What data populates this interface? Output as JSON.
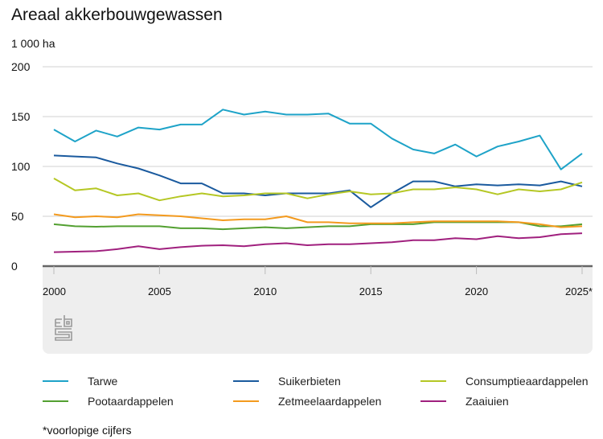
{
  "header": {
    "title": "Areaal akkerbouwgewassen",
    "unit": "1 000 ha"
  },
  "footnote": "*voorlopige cijfers",
  "logo": "cbs-logo-icon",
  "chart_data": {
    "type": "line",
    "title": "Areaal akkerbouwgewassen",
    "xlabel": "",
    "ylabel": "1 000 ha",
    "ylim": [
      0,
      200
    ],
    "yticks": [
      0,
      50,
      100,
      150,
      200
    ],
    "xlim": [
      2000,
      2025
    ],
    "xticks": [
      {
        "value": 2000,
        "label": "2000"
      },
      {
        "value": 2005,
        "label": "2005"
      },
      {
        "value": 2010,
        "label": "2010"
      },
      {
        "value": 2015,
        "label": "2015"
      },
      {
        "value": 2020,
        "label": "2020"
      },
      {
        "value": 2025,
        "label": "2025*"
      }
    ],
    "grid": true,
    "legend_position": "bottom",
    "x": [
      2000,
      2001,
      2002,
      2003,
      2004,
      2005,
      2006,
      2007,
      2008,
      2009,
      2010,
      2011,
      2012,
      2013,
      2014,
      2015,
      2016,
      2017,
      2018,
      2019,
      2020,
      2021,
      2022,
      2023,
      2024,
      2025
    ],
    "series": [
      {
        "name": "Tarwe",
        "color": "#1ea3c8",
        "values": [
          137,
          125,
          136,
          130,
          139,
          137,
          142,
          142,
          157,
          152,
          155,
          152,
          152,
          153,
          143,
          143,
          128,
          117,
          113,
          122,
          110,
          120,
          125,
          131,
          97,
          113
        ]
      },
      {
        "name": "Suikerbieten",
        "color": "#1a5a9e",
        "values": [
          111,
          110,
          109,
          103,
          98,
          91,
          83,
          83,
          73,
          73,
          71,
          73,
          73,
          73,
          76,
          59,
          73,
          85,
          85,
          80,
          82,
          81,
          82,
          81,
          85,
          80
        ]
      },
      {
        "name": "Consumptieaardappelen",
        "color": "#b5c724",
        "values": [
          88,
          76,
          78,
          71,
          73,
          66,
          70,
          73,
          70,
          71,
          73,
          73,
          68,
          72,
          75,
          72,
          73,
          77,
          77,
          79,
          77,
          72,
          77,
          75,
          77,
          84
        ]
      },
      {
        "name": "Pootaardappelen",
        "color": "#53a031",
        "values": [
          42,
          40,
          39.5,
          40,
          40,
          40,
          38,
          38,
          37,
          38,
          39,
          38,
          39,
          40,
          40,
          42,
          42,
          42,
          44,
          44,
          44,
          44,
          44,
          40,
          40,
          42
        ]
      },
      {
        "name": "Zetmeelaardappelen",
        "color": "#f39a1e",
        "values": [
          52,
          49,
          50,
          49,
          52,
          51,
          50,
          48,
          46,
          47,
          47,
          50,
          44,
          44,
          43,
          43,
          43,
          44,
          45,
          45,
          45,
          45,
          44,
          42,
          39,
          40
        ]
      },
      {
        "name": "Zaaiuien",
        "color": "#a0207e",
        "values": [
          14,
          14.5,
          15,
          17,
          20,
          17,
          19,
          20.5,
          21,
          20,
          22,
          23,
          21,
          22,
          22,
          23,
          24,
          26,
          26,
          28,
          27,
          30,
          28,
          29,
          32,
          33
        ]
      }
    ]
  },
  "legend": [
    {
      "label": "Tarwe",
      "color": "#1ea3c8"
    },
    {
      "label": "Suikerbieten",
      "color": "#1a5a9e"
    },
    {
      "label": "Consumptieaardappelen",
      "color": "#b5c724"
    },
    {
      "label": "Pootaardappelen",
      "color": "#53a031"
    },
    {
      "label": "Zetmeelaardappelen",
      "color": "#f39a1e"
    },
    {
      "label": "Zaaiuien",
      "color": "#a0207e"
    }
  ]
}
